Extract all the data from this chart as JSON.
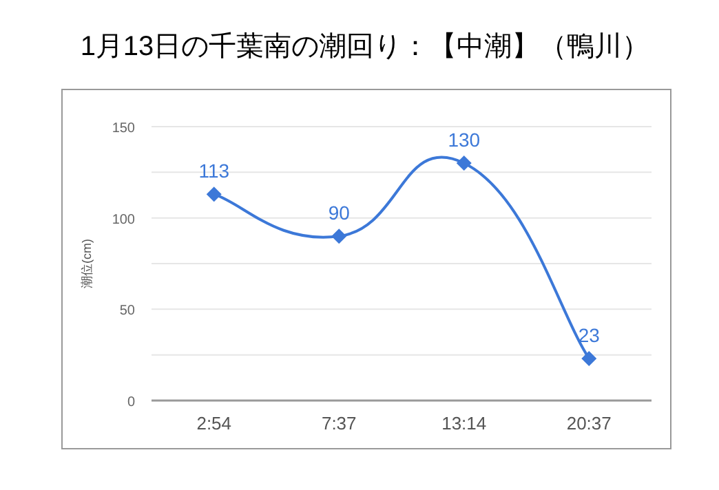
{
  "chart_data": {
    "type": "line",
    "title": "1月13日の千葉南の潮回り：【中潮】（鴨川）",
    "ylabel": "潮位(cm)",
    "categories": [
      "2:54",
      "7:37",
      "13:14",
      "20:37"
    ],
    "series": [
      {
        "color": "#3c78d8",
        "values": [
          113,
          90,
          130,
          23
        ]
      }
    ],
    "ylim": [
      0,
      150
    ],
    "yticks": [
      0,
      {
        "value": 25,
        "label": null
      },
      50,
      {
        "value": 75,
        "label": null
      },
      100,
      {
        "value": 125,
        "label": null
      },
      150
    ],
    "grid": "y",
    "marker": "diamond",
    "line_style": "solid",
    "data_labels": true
  }
}
